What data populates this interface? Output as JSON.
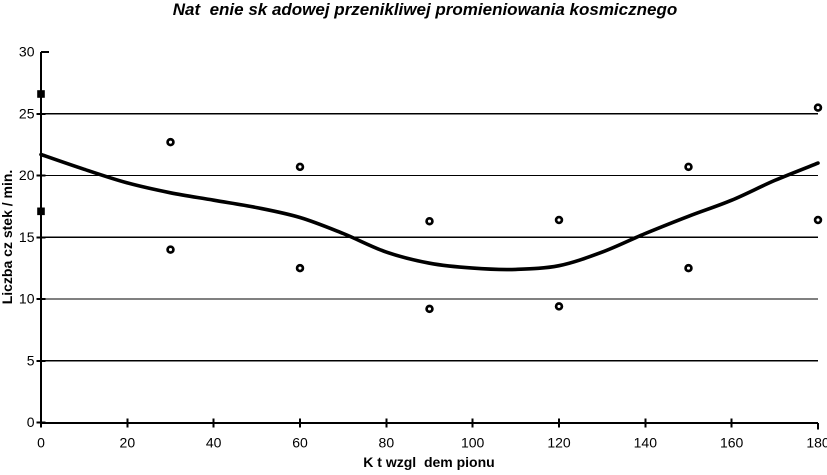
{
  "chart_data": {
    "type": "scatter",
    "title": "Nat  enie sk adowej przenikliwej promieniowania kosmicznego",
    "xlabel": "K t wzgl  dem pionu",
    "ylabel": "Liczba cz stek / min.",
    "xlim": [
      0,
      180
    ],
    "ylim": [
      0,
      30
    ],
    "x_ticks": [
      0,
      20,
      40,
      60,
      80,
      100,
      120,
      140,
      160,
      180
    ],
    "y_ticks": [
      0,
      5,
      10,
      15,
      20,
      25,
      30
    ],
    "gridline_values": [
      5,
      10,
      15,
      20,
      25
    ],
    "grid": "horizontal-only",
    "legend": "none",
    "ink_color": "#000000",
    "background_color": "#ffffff",
    "series": [
      {
        "name": "measured-counts",
        "marker": "donut-circle",
        "marker_on_axis": "filled-square",
        "points": [
          [
            0,
            26.6
          ],
          [
            0,
            17.1
          ],
          [
            30,
            22.7
          ],
          [
            30,
            14.0
          ],
          [
            60,
            20.7
          ],
          [
            60,
            12.5
          ],
          [
            90,
            16.3
          ],
          [
            90,
            9.2
          ],
          [
            120,
            16.4
          ],
          [
            120,
            9.4
          ],
          [
            150,
            20.7
          ],
          [
            150,
            12.5
          ],
          [
            180,
            25.5
          ],
          [
            180,
            16.4
          ]
        ]
      },
      {
        "name": "trend-curve",
        "marker": "none",
        "style": "thick-smooth-line",
        "points": [
          [
            0,
            21.7
          ],
          [
            10,
            20.5
          ],
          [
            20,
            19.4
          ],
          [
            30,
            18.6
          ],
          [
            40,
            18.0
          ],
          [
            50,
            17.4
          ],
          [
            60,
            16.6
          ],
          [
            70,
            15.3
          ],
          [
            80,
            13.8
          ],
          [
            90,
            12.9
          ],
          [
            100,
            12.5
          ],
          [
            110,
            12.4
          ],
          [
            120,
            12.7
          ],
          [
            130,
            13.8
          ],
          [
            140,
            15.3
          ],
          [
            150,
            16.7
          ],
          [
            160,
            18.0
          ],
          [
            170,
            19.6
          ],
          [
            180,
            21.0
          ]
        ]
      }
    ]
  }
}
